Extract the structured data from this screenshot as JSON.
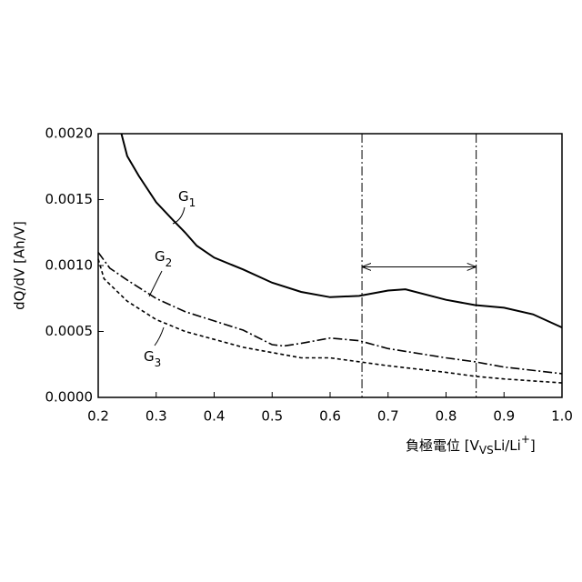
{
  "chart_data": {
    "type": "line",
    "ylabel": "dQ/dV [Ah/V]",
    "xlabel_parts": [
      "負極電位 [V",
      "VS",
      "Li/Li",
      "+",
      "]"
    ],
    "xlim": [
      0.2,
      1.0
    ],
    "xticks": [
      0.2,
      0.3,
      0.4,
      0.5,
      0.6,
      0.7,
      0.8,
      0.9,
      {
        "value": 1.0,
        "label": "1.0"
      }
    ],
    "ylim": [
      0,
      0.002
    ],
    "yticks": [
      {
        "value": 0,
        "label": "0.0000"
      },
      {
        "value": 0.0005,
        "label": "0.0005"
      },
      {
        "value": 0.001,
        "label": "0.0010"
      },
      {
        "value": 0.0015,
        "label": "0.0015"
      },
      {
        "value": 0.002,
        "label": "0.0020"
      }
    ],
    "series": [
      {
        "label": [
          "G",
          "1"
        ],
        "color": "#000",
        "style": "solid",
        "x": [
          0.24,
          0.25,
          0.27,
          0.3,
          0.33,
          0.35,
          0.37,
          0.4,
          0.45,
          0.5,
          0.55,
          0.6,
          0.65,
          0.7,
          0.73,
          0.8,
          0.85,
          0.9,
          0.95,
          1.0
        ],
        "values": [
          0.002,
          0.00183,
          0.00168,
          0.00148,
          0.00134,
          0.00125,
          0.00115,
          0.00106,
          0.00097,
          0.00087,
          0.0008,
          0.00076,
          0.00077,
          0.00081,
          0.00082,
          0.00074,
          0.0007,
          0.00068,
          0.00063,
          0.00053
        ]
      },
      {
        "label": [
          "G",
          "2"
        ],
        "color": "#000",
        "style": "dashdot",
        "x": [
          0.2,
          0.22,
          0.25,
          0.3,
          0.35,
          0.4,
          0.45,
          0.5,
          0.52,
          0.55,
          0.6,
          0.65,
          0.7,
          0.8,
          0.85,
          0.9,
          1.0
        ],
        "values": [
          0.0011,
          0.00098,
          0.00089,
          0.00075,
          0.00065,
          0.00058,
          0.00051,
          0.0004,
          0.00039,
          0.00041,
          0.00045,
          0.00043,
          0.00037,
          0.0003,
          0.00027,
          0.00023,
          0.00018
        ]
      },
      {
        "label": [
          "G",
          "3"
        ],
        "color": "#000",
        "style": "dashed",
        "x": [
          0.2,
          0.21,
          0.25,
          0.3,
          0.35,
          0.4,
          0.45,
          0.5,
          0.55,
          0.6,
          0.65,
          0.7,
          0.8,
          0.85,
          0.9,
          1.0
        ],
        "values": [
          0.00105,
          0.0009,
          0.00073,
          0.00059,
          0.0005,
          0.00044,
          0.00038,
          0.00034,
          0.0003,
          0.0003,
          0.00027,
          0.00024,
          0.00019,
          0.00016,
          0.00014,
          0.00011
        ]
      }
    ],
    "vlines": [
      0.655,
      0.852
    ],
    "arrow_y": 0.00099
  }
}
